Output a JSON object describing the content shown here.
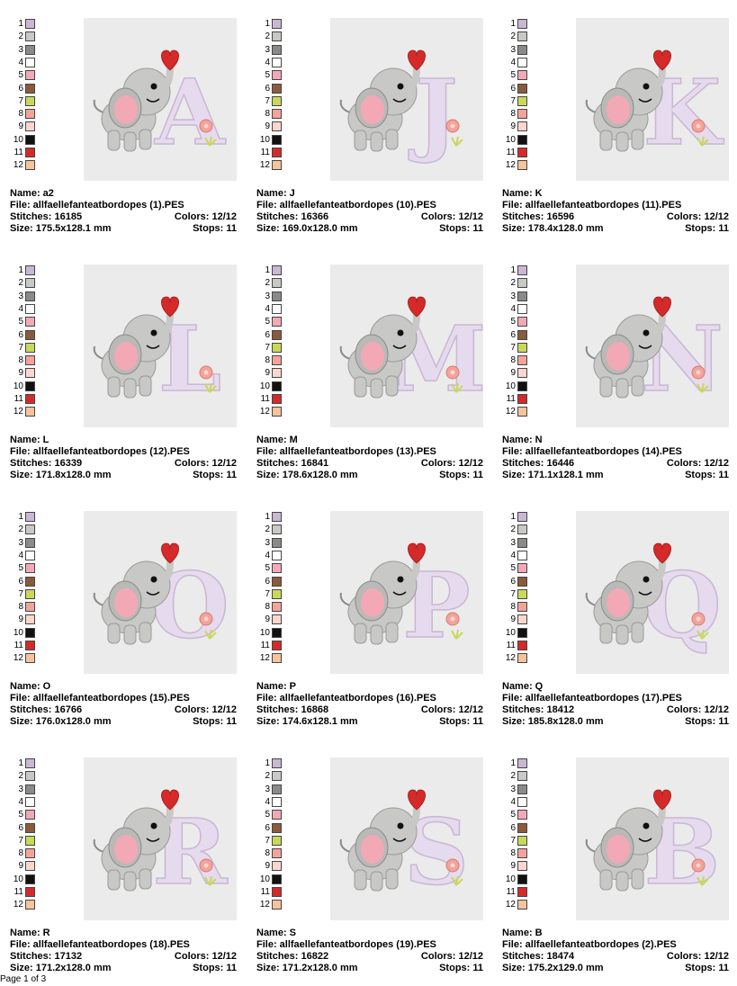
{
  "palette": [
    {
      "num": "1",
      "color": "#c9b7d3"
    },
    {
      "num": "2",
      "color": "#c8c8c6"
    },
    {
      "num": "3",
      "color": "#8a8a88"
    },
    {
      "num": "4",
      "color": "#ffffff"
    },
    {
      "num": "5",
      "color": "#f2a9b5"
    },
    {
      "num": "6",
      "color": "#8b5a3c"
    },
    {
      "num": "7",
      "color": "#c8d85a"
    },
    {
      "num": "8",
      "color": "#f4a39a"
    },
    {
      "num": "9",
      "color": "#fbd6cf"
    },
    {
      "num": "10",
      "color": "#111111"
    },
    {
      "num": "11",
      "color": "#d42a2a"
    },
    {
      "num": "12",
      "color": "#f5c39c"
    }
  ],
  "labels": {
    "name": "Name:",
    "file": "File:",
    "stitches": "Stitches:",
    "size": "Size:",
    "colors": "Colors:",
    "stops": "Stops:"
  },
  "cards": [
    {
      "name": "a2",
      "file": "allfaellefanteatbordopes (1).PES",
      "stitches": "16185",
      "colors": "12/12",
      "size": "175.5x128.1 mm",
      "stops": "11",
      "letter": "A"
    },
    {
      "name": "J",
      "file": "allfaellefanteatbordopes (10).PES",
      "stitches": "16366",
      "colors": "12/12",
      "size": "169.0x128.0 mm",
      "stops": "11",
      "letter": "J"
    },
    {
      "name": "K",
      "file": "allfaellefanteatbordopes (11).PES",
      "stitches": "16596",
      "colors": "12/12",
      "size": "178.4x128.0 mm",
      "stops": "11",
      "letter": "K"
    },
    {
      "name": "L",
      "file": "allfaellefanteatbordopes (12).PES",
      "stitches": "16339",
      "colors": "12/12",
      "size": "171.8x128.0 mm",
      "stops": "11",
      "letter": "L"
    },
    {
      "name": "M",
      "file": "allfaellefanteatbordopes (13).PES",
      "stitches": "16841",
      "colors": "12/12",
      "size": "178.6x128.0 mm",
      "stops": "11",
      "letter": "M"
    },
    {
      "name": "N",
      "file": "allfaellefanteatbordopes (14).PES",
      "stitches": "16446",
      "colors": "12/12",
      "size": "171.1x128.1 mm",
      "stops": "11",
      "letter": "N"
    },
    {
      "name": "O",
      "file": "allfaellefanteatbordopes (15).PES",
      "stitches": "16766",
      "colors": "12/12",
      "size": "176.0x128.0 mm",
      "stops": "11",
      "letter": "O"
    },
    {
      "name": "P",
      "file": "allfaellefanteatbordopes (16).PES",
      "stitches": "16868",
      "colors": "12/12",
      "size": "174.6x128.1 mm",
      "stops": "11",
      "letter": "P"
    },
    {
      "name": "Q",
      "file": "allfaellefanteatbordopes (17).PES",
      "stitches": "18412",
      "colors": "12/12",
      "size": "185.8x128.0 mm",
      "stops": "11",
      "letter": "Q"
    },
    {
      "name": "R",
      "file": "allfaellefanteatbordopes (18).PES",
      "stitches": "17132",
      "colors": "12/12",
      "size": "171.2x128.0 mm",
      "stops": "11",
      "letter": "R"
    },
    {
      "name": "S",
      "file": "allfaellefanteatbordopes (19).PES",
      "stitches": "16822",
      "colors": "12/12",
      "size": "171.2x128.0 mm",
      "stops": "11",
      "letter": "S"
    },
    {
      "name": "B",
      "file": "allfaellefanteatbordopes (2).PES",
      "stitches": "18474",
      "colors": "12/12",
      "size": "175.2x129.0 mm",
      "stops": "11",
      "letter": "B"
    }
  ],
  "footer": "Page 1 of 3"
}
